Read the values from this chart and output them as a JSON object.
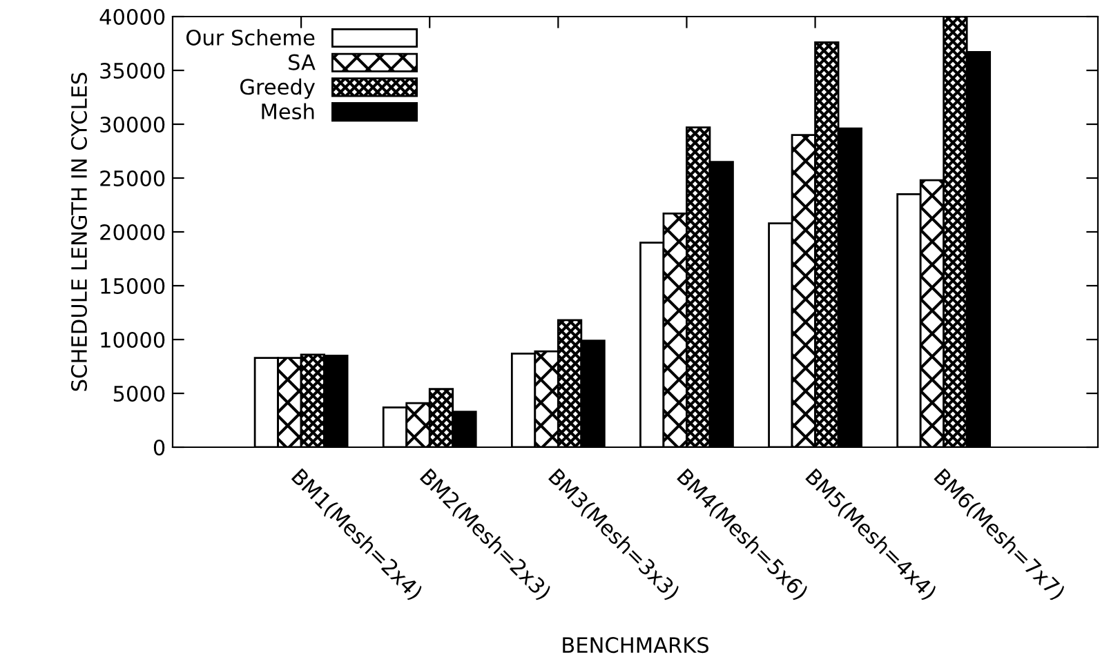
{
  "chart_data": {
    "type": "bar",
    "xlabel": "BENCHMARKS",
    "ylabel": "SCHEDULE LENGTH IN CYCLES",
    "categories": [
      "BM1(Mesh=2x4)",
      "BM2(Mesh=2x3)",
      "BM3(Mesh=3x3)",
      "BM4(Mesh=5x6)",
      "BM5(Mesh=4x4)",
      "BM6(Mesh=7x7)"
    ],
    "series": [
      {
        "name": "Our Scheme",
        "color": "#ffffff",
        "values": [
          8300,
          3700,
          8700,
          19000,
          20800,
          23500
        ]
      },
      {
        "name": "SA",
        "color": "#000000",
        "values": [
          8300,
          4100,
          8900,
          21700,
          29000,
          24800
        ]
      },
      {
        "name": "Greedy",
        "color": "#000000",
        "values": [
          8600,
          5400,
          11800,
          29700,
          37600,
          40000
        ]
      },
      {
        "name": "Mesh",
        "color": "#000000",
        "values": [
          8500,
          3300,
          9900,
          26500,
          29600,
          36700
        ]
      }
    ],
    "ylim": [
      0,
      40000
    ],
    "yticks": [
      0,
      5000,
      10000,
      15000,
      20000,
      25000,
      30000,
      35000,
      40000
    ],
    "legend": "top left",
    "grid": false
  }
}
